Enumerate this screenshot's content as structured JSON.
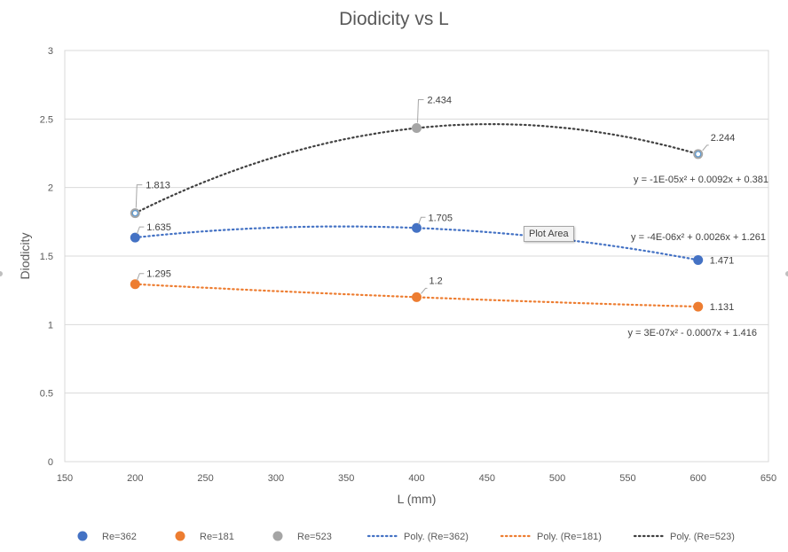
{
  "chart_data": {
    "type": "scatter",
    "title": "Diodicity vs L",
    "xlabel": "L (mm)",
    "ylabel": "Diodicity",
    "xlim": [
      150,
      650
    ],
    "ylim": [
      0,
      3
    ],
    "xticks": [
      150,
      200,
      250,
      300,
      350,
      400,
      450,
      500,
      550,
      600,
      650
    ],
    "yticks": [
      0,
      0.5,
      1,
      1.5,
      2,
      2.5,
      3
    ],
    "xtick_labels": [
      "150",
      "200",
      "250",
      "300",
      "350",
      "400",
      "450",
      "500",
      "550",
      "600",
      "650"
    ],
    "ytick_labels": [
      "0",
      "0.5",
      "1",
      "1.5",
      "2",
      "2.5",
      "3"
    ],
    "grid": "horizontal",
    "legend_position": "bottom",
    "series": [
      {
        "name": "Re=362",
        "color": "#4472C4",
        "x": [
          200,
          400,
          600
        ],
        "y": [
          1.635,
          1.705,
          1.471
        ],
        "labels": [
          "1.635",
          "1.705",
          "1.471"
        ],
        "trendline": {
          "name": "Poly. (Re=362)",
          "type": "polynomial-2",
          "equation": "y = -4E-06x² + 0.0026x + 1.261"
        }
      },
      {
        "name": "Re=181",
        "color": "#ED7D31",
        "x": [
          200,
          400,
          600
        ],
        "y": [
          1.295,
          1.2,
          1.131
        ],
        "labels": [
          "1.295",
          "1.2",
          "1.131"
        ],
        "trendline": {
          "name": "Poly. (Re=181)",
          "type": "polynomial-2",
          "equation": "y = 3E-07x² - 0.0007x + 1.416"
        }
      },
      {
        "name": "Re=523",
        "color": "#A5A5A5",
        "trend_color": "#404040",
        "x": [
          200,
          400,
          600
        ],
        "y": [
          1.813,
          2.434,
          2.244
        ],
        "labels": [
          "1.813",
          "2.434",
          "2.244"
        ],
        "trendline": {
          "name": "Poly. (Re=523)",
          "type": "polynomial-2",
          "equation": "y = -1E-05x² + 0.0092x + 0.381"
        }
      }
    ]
  },
  "tooltip": "Plot Area"
}
